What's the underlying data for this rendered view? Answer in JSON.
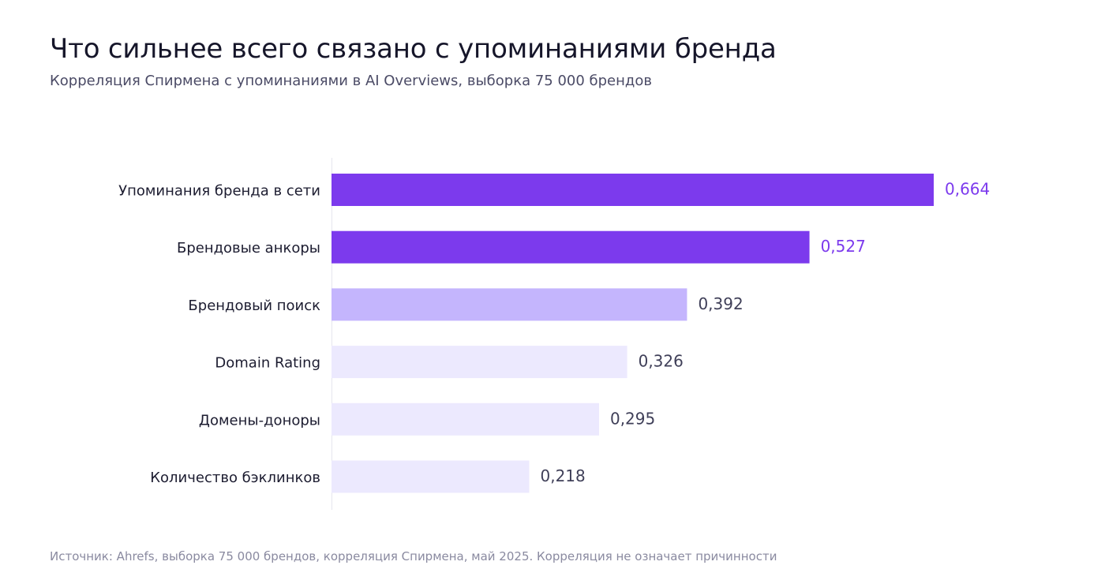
{
  "header": {
    "title": "Что сильнее всего связано с упоминаниями бренда",
    "subtitle": "Корреляция Спирмена с упоминаниями в AI Overviews, выборка 75 000 брендов"
  },
  "footer": {
    "source": "Источник: Ahrefs, выборка 75 000 брендов, корреляция Спирмена, май 2025. Корреляция не означает причинности"
  },
  "colors": {
    "strong": "#7c3aed",
    "medium": "#c4b5fd",
    "weak": "#ece9fe",
    "value_strong": "#7c3aed",
    "value_default": "#3f3f58",
    "axis_line": "#e6e6ee"
  },
  "chart_data": {
    "type": "bar",
    "orientation": "horizontal",
    "categories": [
      "Упоминания бренда в сети",
      "Брендовые анкоры",
      "Брендовый поиск",
      "Domain Rating",
      "Домены-доноры",
      "Количество бэклинков"
    ],
    "values": [
      0.664,
      0.527,
      0.392,
      0.326,
      0.295,
      0.218
    ],
    "value_labels": [
      "0,664",
      "0,527",
      "0,392",
      "0,326",
      "0,295",
      "0,218"
    ],
    "emphasis": [
      "strong",
      "strong",
      "medium",
      "weak",
      "weak",
      "weak"
    ],
    "xlim": [
      0,
      0.664
    ],
    "grid": false
  }
}
